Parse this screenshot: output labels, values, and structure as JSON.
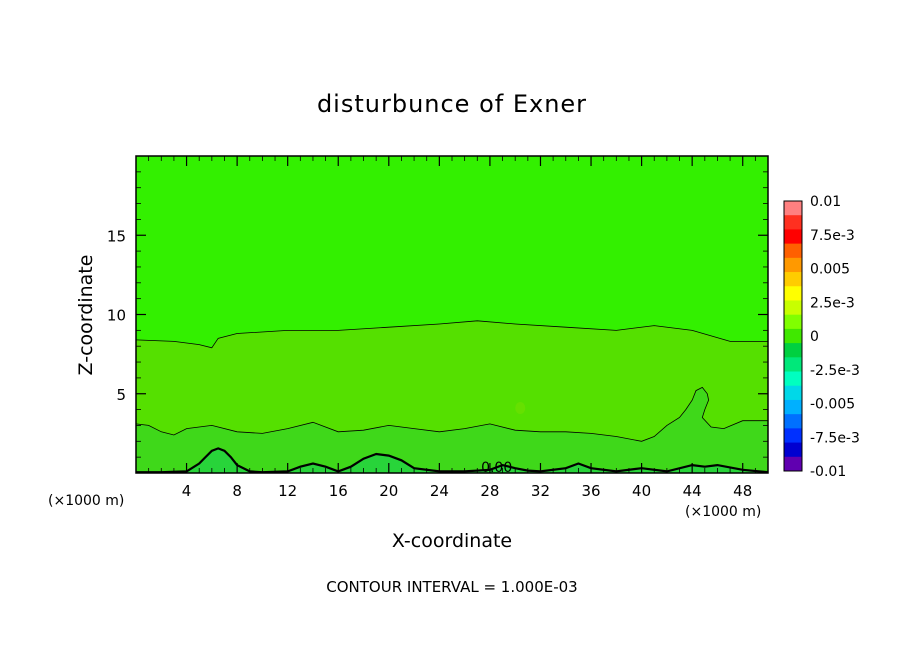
{
  "chart_data": {
    "type": "heatmap",
    "title": "disturbunce of Exner",
    "xlabel": "X-coordinate",
    "ylabel": "Z-coordinate",
    "x_unit_left": "(×1000 m)",
    "x_unit_right": "(×1000 m)",
    "xlim": [
      0,
      50
    ],
    "ylim": [
      0,
      20
    ],
    "x_ticks": [
      4,
      8,
      12,
      16,
      20,
      24,
      28,
      32,
      36,
      40,
      44,
      48
    ],
    "y_ticks": [
      5,
      10,
      15
    ],
    "contour_interval_text": "CONTOUR INTERVAL = 1.000E-03",
    "contour_label": "0.00",
    "colorbar": {
      "labels": [
        "0.01",
        "7.5e-3",
        "0.005",
        "2.5e-3",
        "0",
        "-2.5e-3",
        "-0.005",
        "-7.5e-3",
        "-0.01"
      ],
      "colors_top_to_bottom": [
        "#ff8080",
        "#ff3020",
        "#ff0000",
        "#ff6000",
        "#ff9900",
        "#ffcc00",
        "#ffff00",
        "#c8ff00",
        "#80ff00",
        "#40e800",
        "#00d040",
        "#00e87a",
        "#00ffc0",
        "#00d8e8",
        "#00b0ff",
        "#0070ff",
        "#0030ff",
        "#0000d0",
        "#6000b0"
      ]
    },
    "regions": [
      {
        "name": "upper layer",
        "color": "#33f000"
      },
      {
        "name": "middle layer",
        "color": "#55e000"
      },
      {
        "name": "lower band",
        "color": "#3fd81a"
      },
      {
        "name": "near-surface band",
        "color": "#28d43a"
      }
    ],
    "contours": [
      {
        "name": "upper contour",
        "x": [
          0,
          3,
          5,
          6,
          6.5,
          8,
          12,
          16,
          20,
          24,
          27,
          30,
          34,
          38,
          41,
          44,
          47,
          50
        ],
        "z": [
          8.4,
          8.3,
          8.1,
          7.9,
          8.5,
          8.8,
          9,
          9,
          9.2,
          9.4,
          9.6,
          9.4,
          9.2,
          9,
          9.3,
          9,
          8.3,
          8.3
        ]
      },
      {
        "name": "lower contour",
        "x": [
          0,
          1,
          2,
          3,
          4,
          6,
          8,
          10,
          12,
          14,
          16,
          18,
          20,
          22,
          24,
          26,
          28,
          30,
          32,
          34,
          36,
          38,
          40,
          41,
          42,
          43,
          43.5,
          44,
          44.3,
          44.8,
          45.2,
          45.3,
          45,
          44.8,
          45.5,
          46.5,
          48,
          50
        ],
        "z": [
          3.1,
          3,
          2.6,
          2.4,
          2.8,
          3,
          2.6,
          2.5,
          2.8,
          3.2,
          2.6,
          2.7,
          3,
          2.8,
          2.6,
          2.8,
          3.1,
          2.7,
          2.6,
          2.6,
          2.5,
          2.3,
          2,
          2.3,
          3,
          3.5,
          4,
          4.6,
          5.2,
          5.4,
          5,
          4.6,
          4,
          3.5,
          2.9,
          2.8,
          3.3,
          3.3
        ]
      },
      {
        "name": "thick contour near surface",
        "x": [
          0,
          2,
          4,
          5,
          5.5,
          6,
          6.5,
          7,
          7.5,
          8,
          9,
          10,
          12,
          13,
          14,
          15,
          16,
          17,
          18,
          19,
          20,
          21,
          22,
          24,
          26,
          28,
          29,
          30,
          31,
          32,
          34,
          35,
          36,
          38,
          40,
          42,
          44,
          45,
          46,
          48,
          50
        ],
        "z": [
          0.05,
          0.05,
          0.1,
          0.6,
          1,
          1.4,
          1.55,
          1.4,
          1,
          0.5,
          0.1,
          0.05,
          0.1,
          0.4,
          0.6,
          0.4,
          0.1,
          0.4,
          0.9,
          1.2,
          1.1,
          0.8,
          0.3,
          0.1,
          0.1,
          0.2,
          0.5,
          0.3,
          0.15,
          0.1,
          0.3,
          0.6,
          0.3,
          0.1,
          0.3,
          0.1,
          0.5,
          0.4,
          0.5,
          0.2,
          0.05
        ]
      }
    ]
  }
}
